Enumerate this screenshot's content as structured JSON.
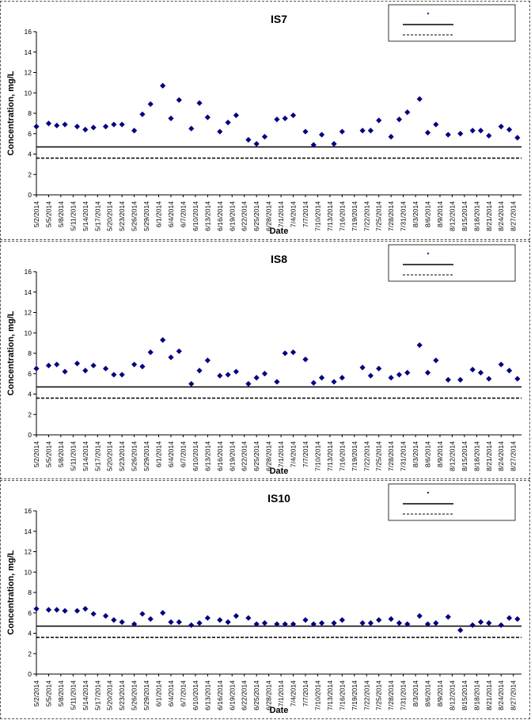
{
  "colors": {
    "marker": "#000080",
    "line": "#000000"
  },
  "chart_data": [
    {
      "type": "scatter",
      "title": "IS7",
      "xlabel": "Date",
      "ylabel": "Concentration, mg/L",
      "ylim": [
        0,
        16
      ],
      "yticks": [
        "0",
        "2",
        "4",
        "6",
        "8",
        "10",
        "12",
        "14",
        "16"
      ],
      "xlim": [
        "5/2/2014",
        "8/29/2014"
      ],
      "xtick_labels": [
        "5/2/2014",
        "5/5/2014",
        "5/8/2014",
        "5/11/2014",
        "5/14/2014",
        "5/17/2014",
        "5/20/2014",
        "5/23/2014",
        "5/26/2014",
        "5/29/2014",
        "6/1/2014",
        "6/4/2014",
        "6/7/2014",
        "6/10/2014",
        "6/13/2014",
        "6/16/2014",
        "6/19/2014",
        "6/22/2014",
        "6/25/2014",
        "6/28/2014",
        "7/1/2014",
        "7/4/2014",
        "7/7/2014",
        "7/10/2014",
        "7/13/2014",
        "7/16/2014",
        "7/19/2014",
        "7/22/2014",
        "7/25/2014",
        "7/28/2014",
        "7/31/2014",
        "8/3/2014",
        "8/6/2014",
        "8/9/2014",
        "8/12/2014",
        "8/15/2014",
        "8/18/2014",
        "8/21/2014",
        "8/24/2014",
        "8/27/2014"
      ],
      "reference_lines": [
        {
          "style": "solid",
          "value": 4.7
        },
        {
          "style": "dashed",
          "value": 3.6
        }
      ],
      "legend": {
        "placement": "top-right",
        "entries": [
          "",
          "",
          ""
        ]
      },
      "grid": false,
      "x": [
        "5/2/2014",
        "5/5/2014",
        "5/7/2014",
        "5/9/2014",
        "5/12/2014",
        "5/14/2014",
        "5/16/2014",
        "5/19/2014",
        "5/21/2014",
        "5/23/2014",
        "5/26/2014",
        "5/28/2014",
        "5/30/2014",
        "6/2/2014",
        "6/4/2014",
        "6/6/2014",
        "6/9/2014",
        "6/11/2014",
        "6/13/2014",
        "6/16/2014",
        "6/18/2014",
        "6/20/2014",
        "6/23/2014",
        "6/25/2014",
        "6/27/2014",
        "6/30/2014",
        "7/2/2014",
        "7/4/2014",
        "7/7/2014",
        "7/9/2014",
        "7/11/2014",
        "7/14/2014",
        "7/16/2014",
        "7/21/2014",
        "7/23/2014",
        "7/25/2014",
        "7/28/2014",
        "7/30/2014",
        "8/1/2014",
        "8/4/2014",
        "8/6/2014",
        "8/8/2014",
        "8/11/2014",
        "8/14/2014",
        "8/17/2014",
        "8/19/2014",
        "8/21/2014",
        "8/24/2014",
        "8/26/2014",
        "8/28/2014"
      ],
      "values": [
        6.7,
        7.0,
        6.8,
        6.9,
        6.7,
        6.4,
        6.6,
        6.7,
        6.9,
        6.9,
        6.3,
        7.9,
        8.9,
        10.7,
        7.5,
        9.3,
        6.5,
        9.0,
        7.6,
        6.2,
        7.1,
        7.8,
        5.4,
        5.0,
        5.7,
        7.4,
        7.5,
        7.8,
        6.2,
        4.9,
        5.9,
        5.0,
        6.2,
        6.3,
        6.3,
        7.3,
        5.7,
        7.4,
        8.1,
        9.4,
        6.1,
        6.9,
        5.9,
        6.0,
        6.3,
        6.3,
        5.8,
        6.7,
        6.4,
        5.6
      ]
    },
    {
      "type": "scatter",
      "title": "IS8",
      "xlabel": "Date",
      "ylabel": "Concentration, mg/L",
      "ylim": [
        0,
        16
      ],
      "yticks": [
        "0",
        "2",
        "4",
        "6",
        "8",
        "10",
        "12",
        "14",
        "16"
      ],
      "xlim": [
        "5/2/2014",
        "8/29/2014"
      ],
      "xtick_labels": [
        "5/2/2014",
        "5/5/2014",
        "5/8/2014",
        "5/11/2014",
        "5/14/2014",
        "5/17/2014",
        "5/20/2014",
        "5/23/2014",
        "5/26/2014",
        "5/29/2014",
        "6/1/2014",
        "6/4/2014",
        "6/7/2014",
        "6/10/2014",
        "6/13/2014",
        "6/16/2014",
        "6/19/2014",
        "6/22/2014",
        "6/25/2014",
        "6/28/2014",
        "7/1/2014",
        "7/4/2014",
        "7/7/2014",
        "7/10/2014",
        "7/13/2014",
        "7/16/2014",
        "7/19/2014",
        "7/22/2014",
        "7/25/2014",
        "7/28/2014",
        "7/31/2014",
        "8/3/2014",
        "8/6/2014",
        "8/9/2014",
        "8/12/2014",
        "8/15/2014",
        "8/18/2014",
        "8/21/2014",
        "8/24/2014",
        "8/27/2014"
      ],
      "reference_lines": [
        {
          "style": "solid",
          "value": 4.7
        },
        {
          "style": "dashed",
          "value": 3.6
        }
      ],
      "legend": {
        "placement": "top-right",
        "entries": [
          "",
          "",
          ""
        ]
      },
      "grid": false,
      "x": [
        "5/2/2014",
        "5/5/2014",
        "5/7/2014",
        "5/9/2014",
        "5/12/2014",
        "5/14/2014",
        "5/16/2014",
        "5/19/2014",
        "5/21/2014",
        "5/23/2014",
        "5/26/2014",
        "5/28/2014",
        "5/30/2014",
        "6/2/2014",
        "6/4/2014",
        "6/6/2014",
        "6/9/2014",
        "6/11/2014",
        "6/13/2014",
        "6/16/2014",
        "6/18/2014",
        "6/20/2014",
        "6/23/2014",
        "6/25/2014",
        "6/27/2014",
        "6/30/2014",
        "7/2/2014",
        "7/4/2014",
        "7/7/2014",
        "7/9/2014",
        "7/11/2014",
        "7/14/2014",
        "7/16/2014",
        "7/21/2014",
        "7/23/2014",
        "7/25/2014",
        "7/28/2014",
        "7/30/2014",
        "8/1/2014",
        "8/4/2014",
        "8/6/2014",
        "8/8/2014",
        "8/11/2014",
        "8/14/2014",
        "8/17/2014",
        "8/19/2014",
        "8/21/2014",
        "8/24/2014",
        "8/26/2014",
        "8/28/2014"
      ],
      "values": [
        6.5,
        6.8,
        6.9,
        6.2,
        7.0,
        6.3,
        6.8,
        6.5,
        5.9,
        5.9,
        6.9,
        6.7,
        8.1,
        9.3,
        7.6,
        8.2,
        5.0,
        6.3,
        7.3,
        5.8,
        5.9,
        6.2,
        5.0,
        5.6,
        6.0,
        5.2,
        8.0,
        8.1,
        7.4,
        5.1,
        5.6,
        5.2,
        5.6,
        6.6,
        5.8,
        6.5,
        5.6,
        5.9,
        6.1,
        8.8,
        6.1,
        7.3,
        5.4,
        5.4,
        6.4,
        6.1,
        5.5,
        6.9,
        6.3,
        5.5
      ]
    },
    {
      "type": "scatter",
      "title": "IS10",
      "xlabel": "Date",
      "ylabel": "Concentration, mg/L",
      "ylim": [
        0,
        16
      ],
      "yticks": [
        "0",
        "2",
        "4",
        "6",
        "8",
        "10",
        "12",
        "14",
        "16"
      ],
      "xlim": [
        "5/2/2014",
        "8/29/2014"
      ],
      "xtick_labels": [
        "5/2/2014",
        "5/5/2014",
        "5/8/2014",
        "5/11/2014",
        "5/14/2014",
        "5/17/2014",
        "5/20/2014",
        "5/23/2014",
        "5/26/2014",
        "5/29/2014",
        "6/1/2014",
        "6/4/2014",
        "6/7/2014",
        "6/10/2014",
        "6/13/2014",
        "6/16/2014",
        "6/19/2014",
        "6/22/2014",
        "6/25/2014",
        "6/28/2014",
        "7/1/2014",
        "7/4/2014",
        "7/7/2014",
        "7/10/2014",
        "7/13/2014",
        "7/16/2014",
        "7/19/2014",
        "7/22/2014",
        "7/25/2014",
        "7/28/2014",
        "7/31/2014",
        "8/3/2014",
        "8/6/2014",
        "8/9/2014",
        "8/12/2014",
        "8/15/2014",
        "8/18/2014",
        "8/21/2014",
        "8/24/2014",
        "8/27/2014"
      ],
      "reference_lines": [
        {
          "style": "solid",
          "value": 4.7
        },
        {
          "style": "dashed",
          "value": 3.6
        }
      ],
      "legend": {
        "placement": "top-right",
        "entries": [
          "",
          "",
          ""
        ]
      },
      "grid": false,
      "x": [
        "5/2/2014",
        "5/5/2014",
        "5/7/2014",
        "5/9/2014",
        "5/12/2014",
        "5/14/2014",
        "5/16/2014",
        "5/19/2014",
        "5/21/2014",
        "5/23/2014",
        "5/26/2014",
        "5/28/2014",
        "5/30/2014",
        "6/2/2014",
        "6/4/2014",
        "6/6/2014",
        "6/9/2014",
        "6/11/2014",
        "6/13/2014",
        "6/16/2014",
        "6/18/2014",
        "6/20/2014",
        "6/23/2014",
        "6/25/2014",
        "6/27/2014",
        "6/30/2014",
        "7/2/2014",
        "7/4/2014",
        "7/7/2014",
        "7/9/2014",
        "7/11/2014",
        "7/14/2014",
        "7/16/2014",
        "7/21/2014",
        "7/23/2014",
        "7/25/2014",
        "7/28/2014",
        "7/30/2014",
        "8/1/2014",
        "8/4/2014",
        "8/6/2014",
        "8/8/2014",
        "8/11/2014",
        "8/14/2014",
        "8/17/2014",
        "8/19/2014",
        "8/21/2014",
        "8/24/2014",
        "8/26/2014",
        "8/28/2014"
      ],
      "values": [
        6.4,
        6.3,
        6.3,
        6.2,
        6.2,
        6.4,
        5.9,
        5.7,
        5.3,
        5.1,
        4.9,
        5.9,
        5.4,
        6.0,
        5.1,
        5.1,
        4.8,
        5.0,
        5.5,
        5.3,
        5.1,
        5.7,
        5.5,
        4.9,
        5.0,
        4.9,
        4.9,
        4.9,
        5.3,
        4.9,
        5.0,
        5.0,
        5.3,
        5.0,
        5.0,
        5.3,
        5.4,
        5.0,
        4.9,
        5.7,
        4.9,
        5.0,
        5.6,
        4.3,
        4.8,
        5.1,
        5.0,
        4.8,
        5.5,
        5.4
      ]
    }
  ]
}
